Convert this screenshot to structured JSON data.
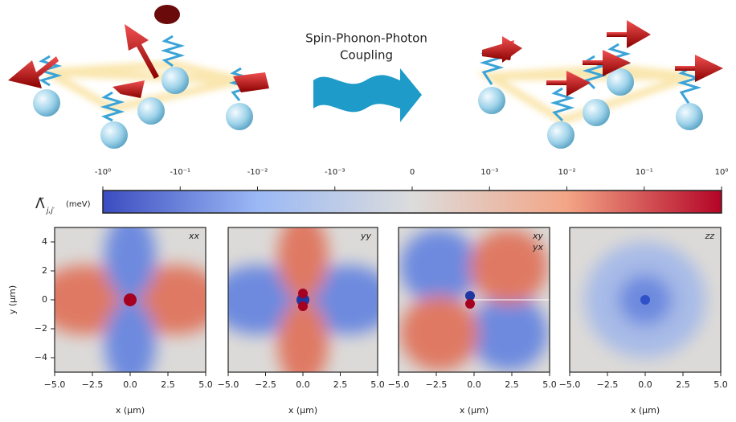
{
  "illustration": {
    "caption_lines": [
      "Spin-Phonon-Photon",
      "Coupling"
    ]
  },
  "colorbar": {
    "symbol": "Λ̃",
    "subscript": "j,j′",
    "unit": "(meV)",
    "lim": [
      -1,
      1
    ],
    "linthresh": 0.001,
    "colors": [
      "#3b4cc0",
      "#9bb9f5",
      "#dcdcdc",
      "#f3a586",
      "#b40426"
    ],
    "ticks": [
      {
        "value": -1,
        "label": "-10⁰"
      },
      {
        "value": -0.1,
        "label": "-10⁻¹"
      },
      {
        "value": -0.01,
        "label": "-10⁻²"
      },
      {
        "value": -0.001,
        "label": "-10⁻³"
      },
      0,
      {
        "value": 0.001,
        "label": "10⁻³"
      },
      {
        "value": 0.01,
        "label": "10⁻²"
      },
      {
        "value": 0.1,
        "label": "10⁻¹"
      },
      {
        "value": 1,
        "label": "10⁰"
      }
    ]
  },
  "chart_data": [
    {
      "type": "heatmap",
      "label_lines": [
        "xx"
      ],
      "xlabel": "x (μm)",
      "ylabel": "y (μm)",
      "xlim": [
        -5,
        5
      ],
      "ylim": [
        -5,
        5
      ],
      "xticks": [
        {
          "value": -5,
          "label": "−5.0"
        },
        {
          "value": -2.5,
          "label": "−2.5"
        },
        {
          "value": 0,
          "label": "0.0"
        },
        2.5,
        {
          "value": 5,
          "label": "5.0"
        }
      ],
      "yticks": [
        {
          "value": -4,
          "label": "−4"
        },
        {
          "value": -2,
          "label": "−2"
        },
        0,
        2,
        4
      ]
    },
    {
      "type": "heatmap",
      "label_lines": [
        "yy"
      ],
      "xlabel": "x (μm)",
      "xlim": [
        -5,
        5
      ],
      "ylim": [
        -5,
        5
      ],
      "xticks": [
        {
          "value": -5,
          "label": "−5.0"
        },
        {
          "value": -2.5,
          "label": "−2.5"
        },
        {
          "value": 0,
          "label": "0.0"
        },
        2.5,
        {
          "value": 5,
          "label": "5.0"
        }
      ]
    },
    {
      "type": "heatmap",
      "label_lines": [
        "xy",
        "yx"
      ],
      "xlabel": "x (μm)",
      "xlim": [
        -5,
        5
      ],
      "ylim": [
        -5,
        5
      ],
      "xticks": [
        {
          "value": -5,
          "label": "−5.0"
        },
        {
          "value": -2.5,
          "label": "−2.5"
        },
        {
          "value": 0,
          "label": "0.0"
        },
        2.5,
        {
          "value": 5,
          "label": "5.0"
        }
      ]
    },
    {
      "type": "heatmap",
      "label_lines": [
        "zz"
      ],
      "xlabel": "x (μm)",
      "xlim": [
        -5,
        5
      ],
      "ylim": [
        -5,
        5
      ],
      "xticks": [
        {
          "value": -5,
          "label": "−5.0"
        },
        {
          "value": -2.5,
          "label": "−2.5"
        },
        {
          "value": 0,
          "label": "0.0"
        },
        2.5,
        {
          "value": 5,
          "label": "5.0"
        }
      ]
    }
  ]
}
